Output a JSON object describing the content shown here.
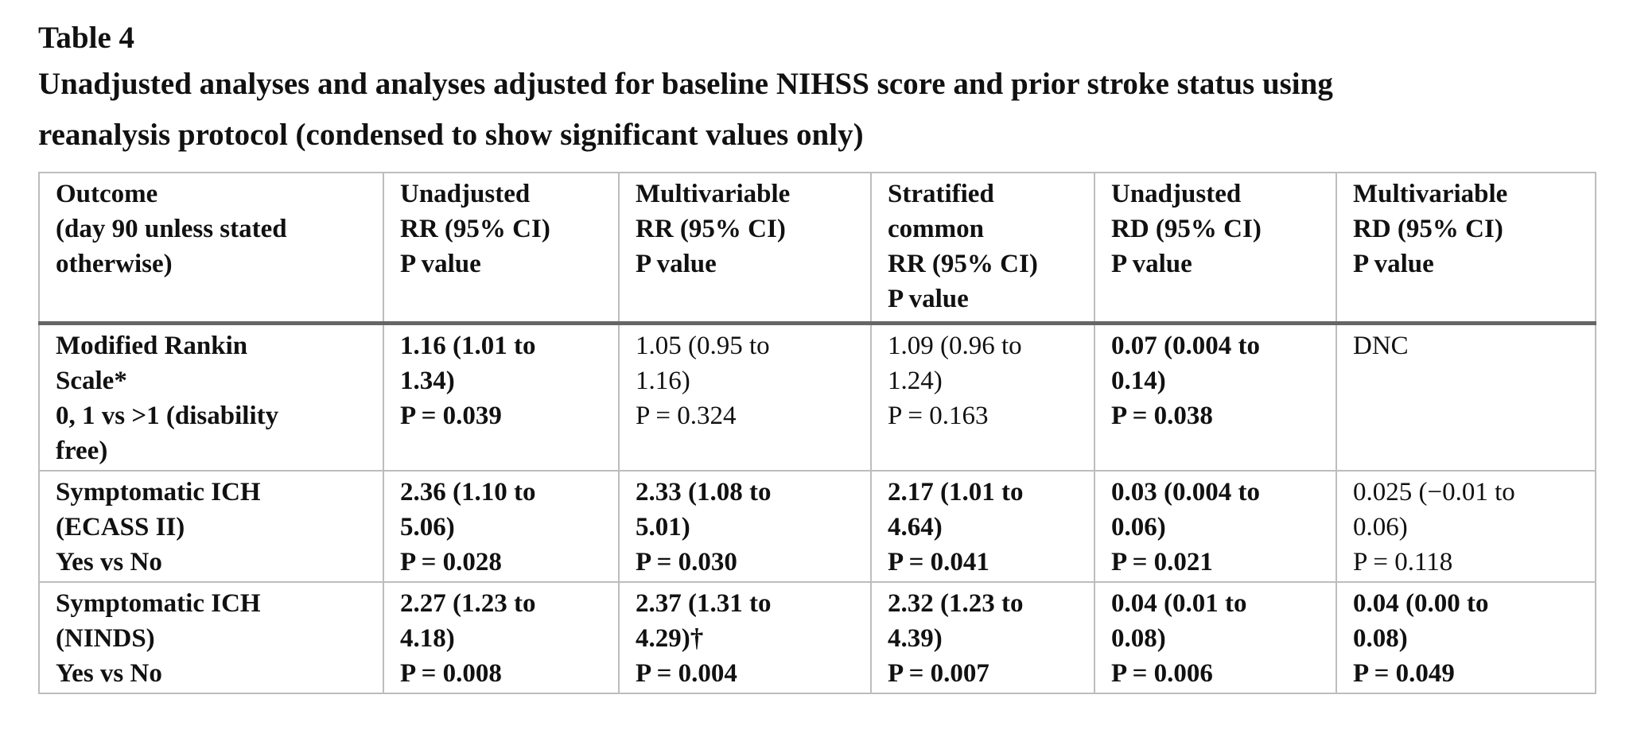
{
  "table_label": "Table 4",
  "caption": "Unadjusted analyses and analyses adjusted for baseline NIHSS score and prior stroke status using reanalysis protocol (condensed to show significant values only)",
  "table": {
    "headers": [
      [
        "Outcome",
        "(day 90 unless stated",
        "otherwise)"
      ],
      [
        "Unadjusted",
        "RR (95% CI)",
        "P value"
      ],
      [
        "Multivariable",
        "RR (95% CI)",
        "P value"
      ],
      [
        "Stratified",
        "common",
        "RR (95% CI)",
        "P value"
      ],
      [
        "Unadjusted",
        "RD (95% CI)",
        "P value"
      ],
      [
        "Multivariable",
        "RD (95% CI)",
        "P value"
      ]
    ],
    "rows": [
      {
        "outcome": [
          "Modified Rankin",
          "Scale*",
          "0, 1 vs >1 (disability",
          "free)"
        ],
        "cells": [
          {
            "text": [
              "1.16 (1.01 to",
              "1.34)",
              "P = 0.039"
            ],
            "bold": true
          },
          {
            "text": [
              "1.05 (0.95 to",
              "1.16)",
              "P = 0.324"
            ],
            "bold": false
          },
          {
            "text": [
              "1.09 (0.96 to",
              "1.24)",
              "P = 0.163"
            ],
            "bold": false
          },
          {
            "text": [
              "0.07 (0.004 to",
              "0.14)",
              "P = 0.038"
            ],
            "bold": true
          },
          {
            "text": [
              "DNC"
            ],
            "bold": false
          }
        ]
      },
      {
        "outcome": [
          "Symptomatic ICH",
          "(ECASS II)",
          "Yes vs No"
        ],
        "cells": [
          {
            "text": [
              "2.36 (1.10 to",
              "5.06)",
              "P = 0.028"
            ],
            "bold": true
          },
          {
            "text": [
              "2.33 (1.08 to",
              "5.01)",
              "P = 0.030"
            ],
            "bold": true
          },
          {
            "text": [
              "2.17 (1.01 to",
              "4.64)",
              "P = 0.041"
            ],
            "bold": true
          },
          {
            "text": [
              "0.03 (0.004 to",
              "0.06)",
              "P = 0.021"
            ],
            "bold": true
          },
          {
            "text": [
              "0.025 (−0.01 to",
              "0.06)",
              "P = 0.118"
            ],
            "bold": false
          }
        ]
      },
      {
        "outcome": [
          "Symptomatic ICH",
          "(NINDS)",
          "Yes vs No"
        ],
        "cells": [
          {
            "text": [
              "2.27 (1.23 to",
              "4.18)",
              "P = 0.008"
            ],
            "bold": true
          },
          {
            "text": [
              "2.37 (1.31 to",
              "4.29)†",
              "P = 0.004"
            ],
            "bold": true
          },
          {
            "text": [
              "2.32 (1.23 to",
              "4.39)",
              "P = 0.007"
            ],
            "bold": true
          },
          {
            "text": [
              "0.04 (0.01 to",
              "0.08)",
              "P = 0.006"
            ],
            "bold": true
          },
          {
            "text": [
              "0.04 (0.00 to",
              "0.08)",
              "P = 0.049"
            ],
            "bold": true
          }
        ]
      }
    ]
  }
}
